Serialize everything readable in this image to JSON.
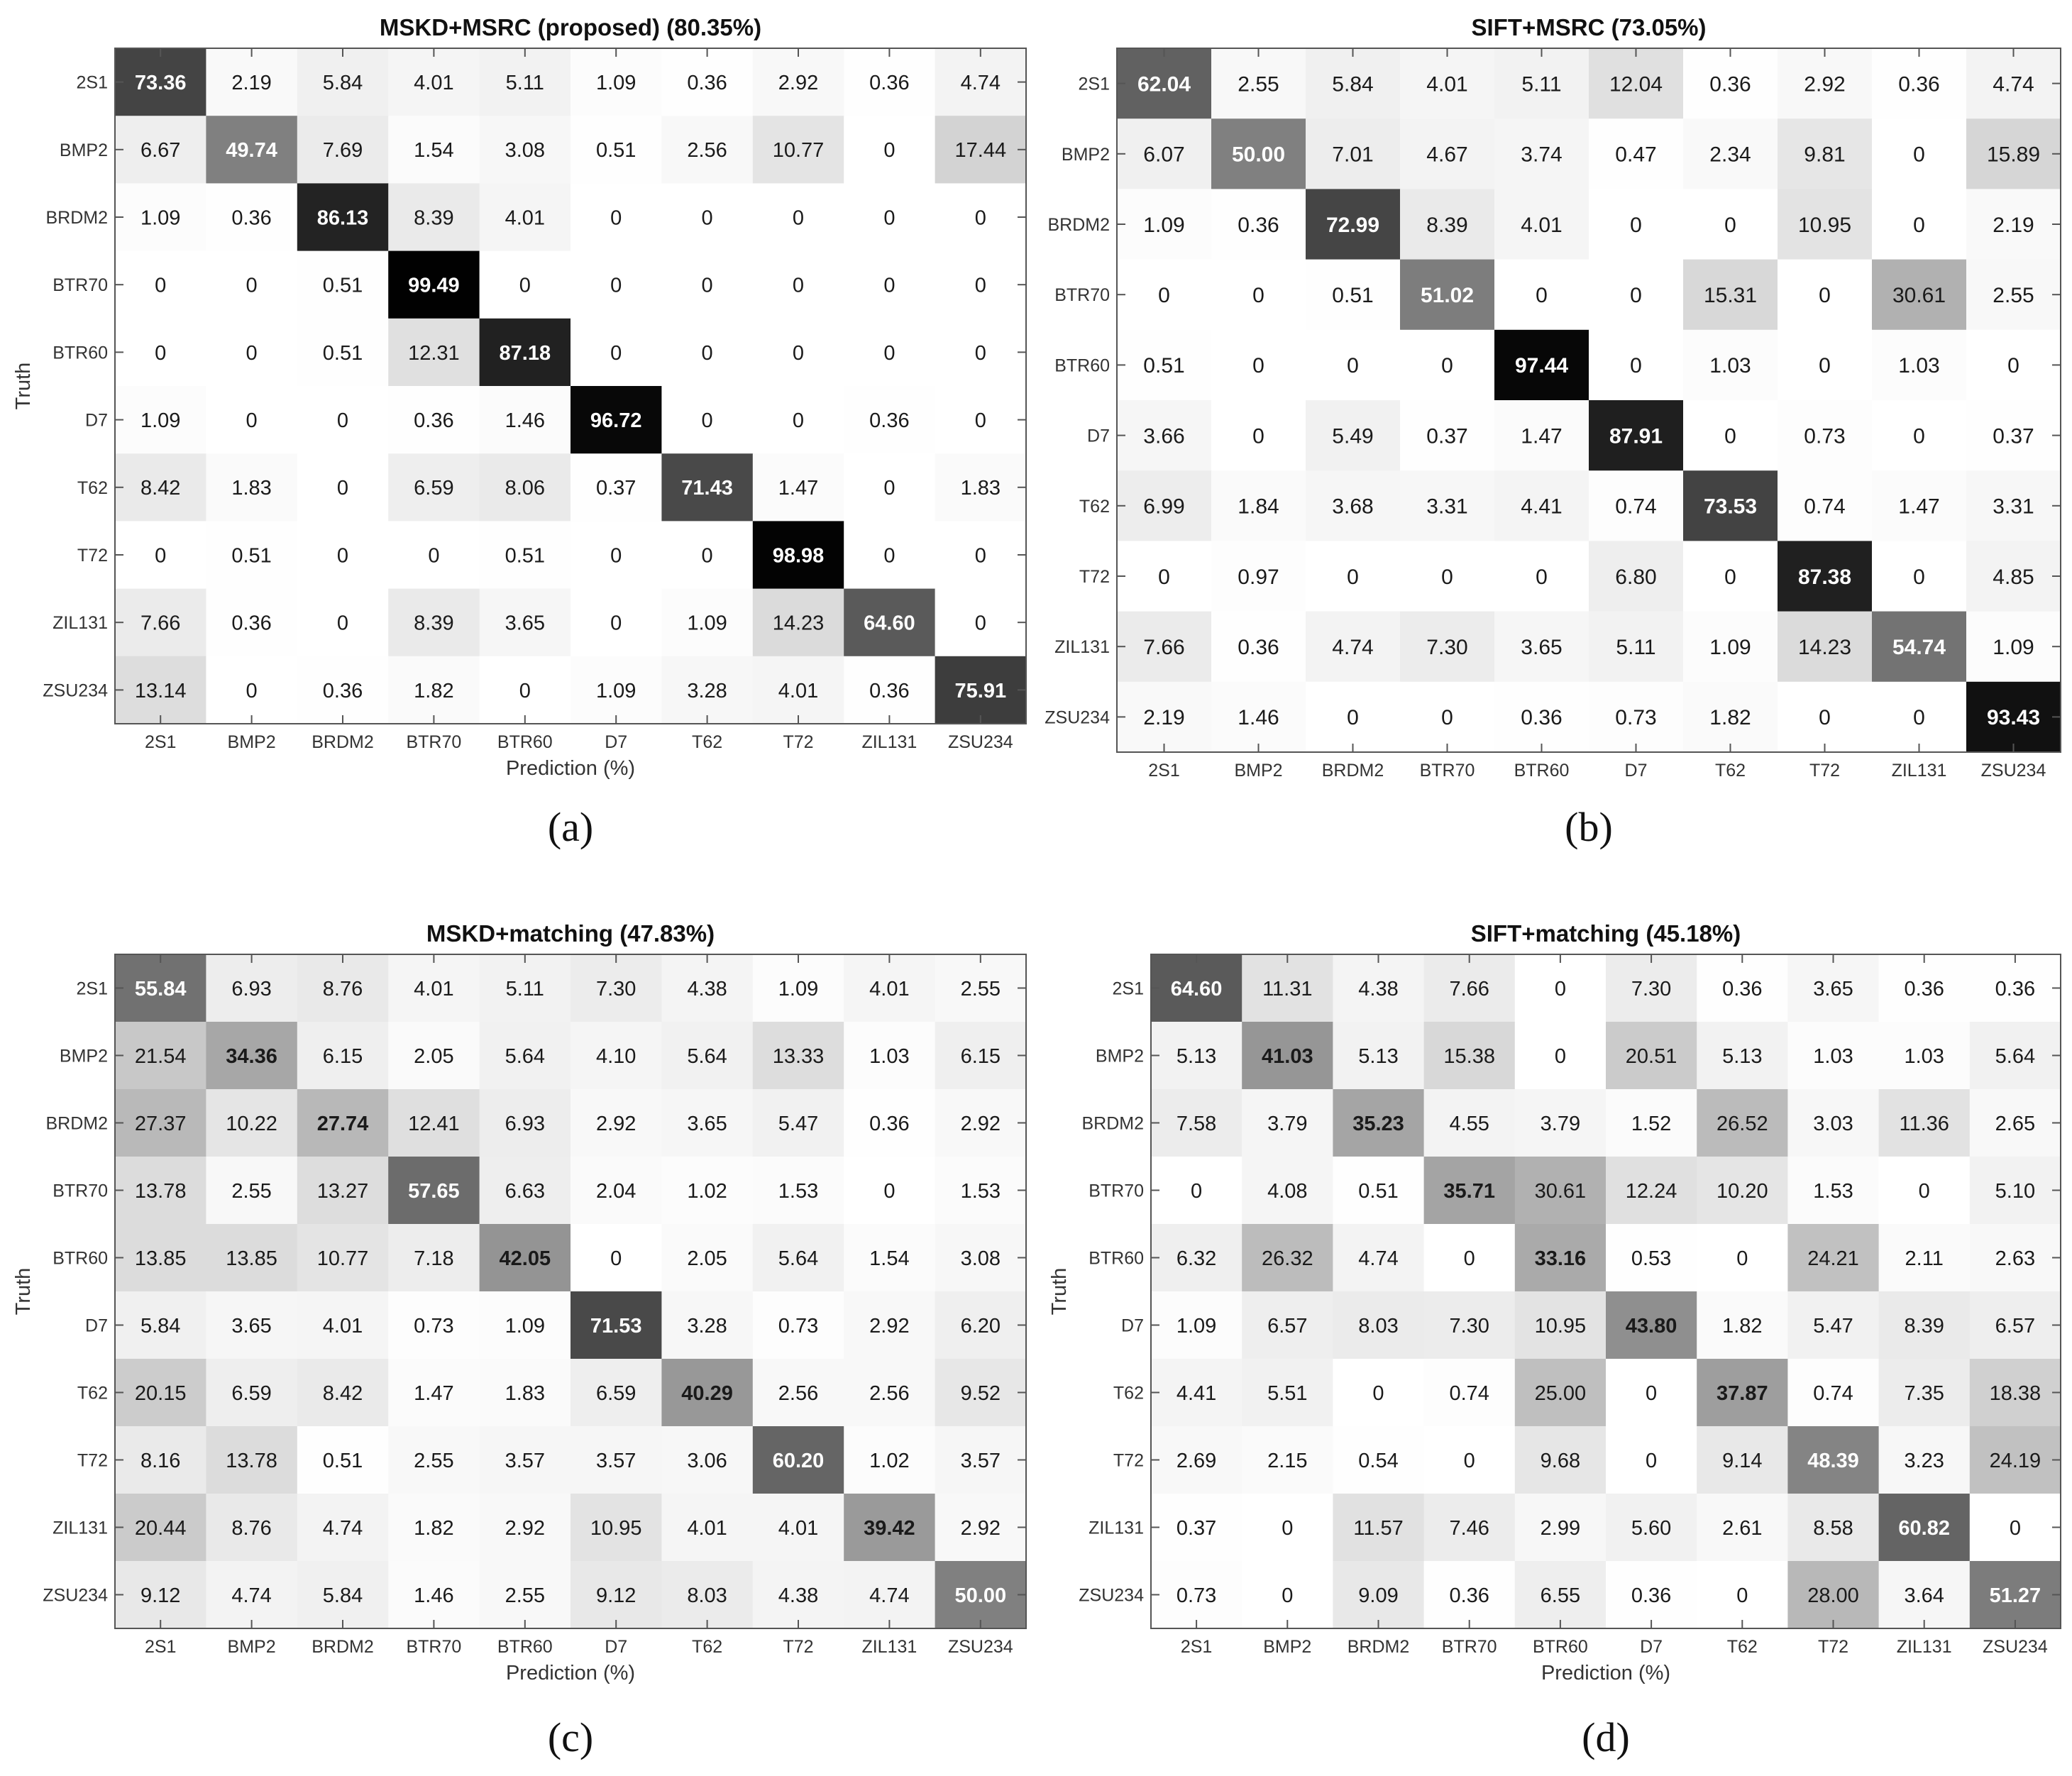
{
  "chart_data": [
    {
      "type": "heatmap",
      "panel_label": "(a)",
      "title": "MSKD+MSRC (proposed) (80.35%)",
      "xlabel": "Prediction (%)",
      "ylabel": "Truth",
      "rows": [
        "2S1",
        "BMP2",
        "BRDM2",
        "BTR70",
        "BTR60",
        "D7",
        "T62",
        "T72",
        "ZIL131",
        "ZSU234"
      ],
      "cols": [
        "2S1",
        "BMP2",
        "BRDM2",
        "BTR70",
        "BTR60",
        "D7",
        "T62",
        "T72",
        "ZIL131",
        "ZSU234"
      ],
      "values": [
        [
          "73.36",
          "2.19",
          "5.84",
          "4.01",
          "5.11",
          "1.09",
          "0.36",
          "2.92",
          "0.36",
          "4.74"
        ],
        [
          "6.67",
          "49.74",
          "7.69",
          "1.54",
          "3.08",
          "0.51",
          "2.56",
          "10.77",
          "0",
          "17.44"
        ],
        [
          "1.09",
          "0.36",
          "86.13",
          "8.39",
          "4.01",
          "0",
          "0",
          "0",
          "0",
          "0"
        ],
        [
          "0",
          "0",
          "0.51",
          "99.49",
          "0",
          "0",
          "0",
          "0",
          "0",
          "0"
        ],
        [
          "0",
          "0",
          "0.51",
          "12.31",
          "87.18",
          "0",
          "0",
          "0",
          "0",
          "0"
        ],
        [
          "1.09",
          "0",
          "0",
          "0.36",
          "1.46",
          "96.72",
          "0",
          "0",
          "0.36",
          "0"
        ],
        [
          "8.42",
          "1.83",
          "0",
          "6.59",
          "8.06",
          "0.37",
          "71.43",
          "1.47",
          "0",
          "1.83"
        ],
        [
          "0",
          "0.51",
          "0",
          "0",
          "0.51",
          "0",
          "0",
          "98.98",
          "0",
          "0"
        ],
        [
          "7.66",
          "0.36",
          "0",
          "8.39",
          "3.65",
          "0",
          "1.09",
          "14.23",
          "64.60",
          "0"
        ],
        [
          "13.14",
          "0",
          "0.36",
          "1.82",
          "0",
          "1.09",
          "3.28",
          "4.01",
          "0.36",
          "75.91"
        ]
      ]
    },
    {
      "type": "heatmap",
      "panel_label": "(b)",
      "title": "SIFT+MSRC (73.05%)",
      "xlabel": "",
      "ylabel": "",
      "rows": [
        "2S1",
        "BMP2",
        "BRDM2",
        "BTR70",
        "BTR60",
        "D7",
        "T62",
        "T72",
        "ZIL131",
        "ZSU234"
      ],
      "cols": [
        "2S1",
        "BMP2",
        "BRDM2",
        "BTR70",
        "BTR60",
        "D7",
        "T62",
        "T72",
        "ZIL131",
        "ZSU234"
      ],
      "values": [
        [
          "62.04",
          "2.55",
          "5.84",
          "4.01",
          "5.11",
          "12.04",
          "0.36",
          "2.92",
          "0.36",
          "4.74"
        ],
        [
          "6.07",
          "50.00",
          "7.01",
          "4.67",
          "3.74",
          "0.47",
          "2.34",
          "9.81",
          "0",
          "15.89"
        ],
        [
          "1.09",
          "0.36",
          "72.99",
          "8.39",
          "4.01",
          "0",
          "0",
          "10.95",
          "0",
          "2.19"
        ],
        [
          "0",
          "0",
          "0.51",
          "51.02",
          "0",
          "0",
          "15.31",
          "0",
          "30.61",
          "2.55"
        ],
        [
          "0.51",
          "0",
          "0",
          "0",
          "97.44",
          "0",
          "1.03",
          "0",
          "1.03",
          "0"
        ],
        [
          "3.66",
          "0",
          "5.49",
          "0.37",
          "1.47",
          "87.91",
          "0",
          "0.73",
          "0",
          "0.37"
        ],
        [
          "6.99",
          "1.84",
          "3.68",
          "3.31",
          "4.41",
          "0.74",
          "73.53",
          "0.74",
          "1.47",
          "3.31"
        ],
        [
          "0",
          "0.97",
          "0",
          "0",
          "0",
          "6.80",
          "0",
          "87.38",
          "0",
          "4.85"
        ],
        [
          "7.66",
          "0.36",
          "4.74",
          "7.30",
          "3.65",
          "5.11",
          "1.09",
          "14.23",
          "54.74",
          "1.09"
        ],
        [
          "2.19",
          "1.46",
          "0",
          "0",
          "0.36",
          "0.73",
          "1.82",
          "0",
          "0",
          "93.43"
        ]
      ]
    },
    {
      "type": "heatmap",
      "panel_label": "(c)",
      "title": "MSKD+matching (47.83%)",
      "xlabel": "Prediction (%)",
      "ylabel": "Truth",
      "rows": [
        "2S1",
        "BMP2",
        "BRDM2",
        "BTR70",
        "BTR60",
        "D7",
        "T62",
        "T72",
        "ZIL131",
        "ZSU234"
      ],
      "cols": [
        "2S1",
        "BMP2",
        "BRDM2",
        "BTR70",
        "BTR60",
        "D7",
        "T62",
        "T72",
        "ZIL131",
        "ZSU234"
      ],
      "values": [
        [
          "55.84",
          "6.93",
          "8.76",
          "4.01",
          "5.11",
          "7.30",
          "4.38",
          "1.09",
          "4.01",
          "2.55"
        ],
        [
          "21.54",
          "34.36",
          "6.15",
          "2.05",
          "5.64",
          "4.10",
          "5.64",
          "13.33",
          "1.03",
          "6.15"
        ],
        [
          "27.37",
          "10.22",
          "27.74",
          "12.41",
          "6.93",
          "2.92",
          "3.65",
          "5.47",
          "0.36",
          "2.92"
        ],
        [
          "13.78",
          "2.55",
          "13.27",
          "57.65",
          "6.63",
          "2.04",
          "1.02",
          "1.53",
          "0",
          "1.53"
        ],
        [
          "13.85",
          "13.85",
          "10.77",
          "7.18",
          "42.05",
          "0",
          "2.05",
          "5.64",
          "1.54",
          "3.08"
        ],
        [
          "5.84",
          "3.65",
          "4.01",
          "0.73",
          "1.09",
          "71.53",
          "3.28",
          "0.73",
          "2.92",
          "6.20"
        ],
        [
          "20.15",
          "6.59",
          "8.42",
          "1.47",
          "1.83",
          "6.59",
          "40.29",
          "2.56",
          "2.56",
          "9.52"
        ],
        [
          "8.16",
          "13.78",
          "0.51",
          "2.55",
          "3.57",
          "3.57",
          "3.06",
          "60.20",
          "1.02",
          "3.57"
        ],
        [
          "20.44",
          "8.76",
          "4.74",
          "1.82",
          "2.92",
          "10.95",
          "4.01",
          "4.01",
          "39.42",
          "2.92"
        ],
        [
          "9.12",
          "4.74",
          "5.84",
          "1.46",
          "2.55",
          "9.12",
          "8.03",
          "4.38",
          "4.74",
          "50.00"
        ]
      ]
    },
    {
      "type": "heatmap",
      "panel_label": "(d)",
      "title": "SIFT+matching (45.18%)",
      "xlabel": "Prediction (%)",
      "ylabel": "Truth",
      "rows": [
        "2S1",
        "BMP2",
        "BRDM2",
        "BTR70",
        "BTR60",
        "D7",
        "T62",
        "T72",
        "ZIL131",
        "ZSU234"
      ],
      "cols": [
        "2S1",
        "BMP2",
        "BRDM2",
        "BTR70",
        "BTR60",
        "D7",
        "T62",
        "T72",
        "ZIL131",
        "ZSU234"
      ],
      "values": [
        [
          "64.60",
          "11.31",
          "4.38",
          "7.66",
          "0",
          "7.30",
          "0.36",
          "3.65",
          "0.36",
          "0.36"
        ],
        [
          "5.13",
          "41.03",
          "5.13",
          "15.38",
          "0",
          "20.51",
          "5.13",
          "1.03",
          "1.03",
          "5.64"
        ],
        [
          "7.58",
          "3.79",
          "35.23",
          "4.55",
          "3.79",
          "1.52",
          "26.52",
          "3.03",
          "11.36",
          "2.65"
        ],
        [
          "0",
          "4.08",
          "0.51",
          "35.71",
          "30.61",
          "12.24",
          "10.20",
          "1.53",
          "0",
          "5.10"
        ],
        [
          "6.32",
          "26.32",
          "4.74",
          "0",
          "33.16",
          "0.53",
          "0",
          "24.21",
          "2.11",
          "2.63"
        ],
        [
          "1.09",
          "6.57",
          "8.03",
          "7.30",
          "10.95",
          "43.80",
          "1.82",
          "5.47",
          "8.39",
          "6.57"
        ],
        [
          "4.41",
          "5.51",
          "0",
          "0.74",
          "25.00",
          "0",
          "37.87",
          "0.74",
          "7.35",
          "18.38"
        ],
        [
          "2.69",
          "2.15",
          "0.54",
          "0",
          "9.68",
          "0",
          "9.14",
          "48.39",
          "3.23",
          "24.19"
        ],
        [
          "0.37",
          "0",
          "11.57",
          "7.46",
          "2.99",
          "5.60",
          "2.61",
          "8.58",
          "60.82",
          "0"
        ],
        [
          "0.73",
          "0",
          "9.09",
          "0.36",
          "6.55",
          "0.36",
          "0",
          "28.00",
          "3.64",
          "51.27"
        ]
      ]
    }
  ]
}
